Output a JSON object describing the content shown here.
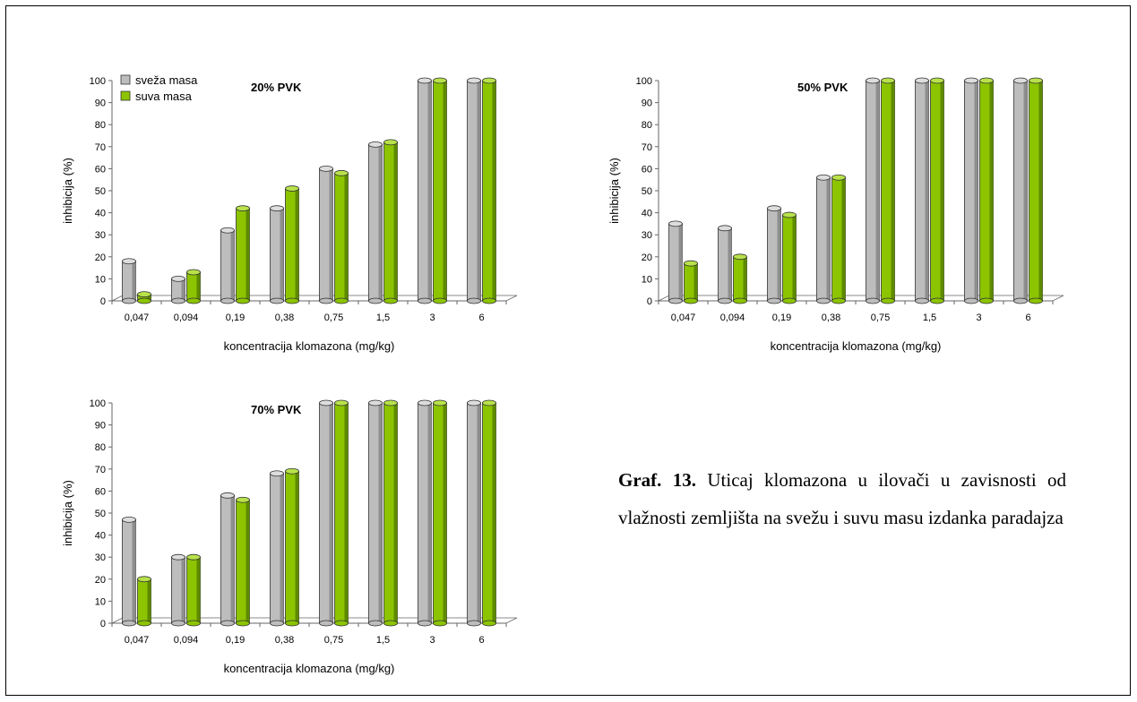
{
  "colors": {
    "fresh_front": "#bdbdbd",
    "fresh_side": "#8e8e8e",
    "fresh_top": "#dddddd",
    "dry_front": "#8cc400",
    "dry_side": "#5e8a00",
    "dry_top": "#b8e24a"
  },
  "caption": {
    "label": "Graf. 13.",
    "text": "Uticaj klomazona u ilovači u zavisnosti od vlažnosti zemljišta na svežu i suvu masu izdanka paradajza"
  },
  "chart_data": [
    {
      "type": "bar",
      "title": "20% PVK",
      "xlabel": "koncentracija klomazona (mg/kg)",
      "ylabel": "inhibicija (%)",
      "ylim": [
        0,
        100
      ],
      "yticks": [
        0,
        10,
        20,
        30,
        40,
        50,
        60,
        70,
        80,
        90,
        100
      ],
      "categories": [
        "0,047",
        "0,094",
        "0,19",
        "0,38",
        "0,75",
        "1,5",
        "3",
        "6"
      ],
      "legend": "top-left",
      "series": [
        {
          "name": "sveža masa",
          "values": [
            18,
            10,
            32,
            42,
            60,
            71,
            100,
            100
          ]
        },
        {
          "name": "suva masa",
          "values": [
            3,
            13,
            42,
            51,
            58,
            72,
            100,
            100
          ]
        }
      ]
    },
    {
      "type": "bar",
      "title": "50% PVK",
      "xlabel": "koncentracija klomazona (mg/kg)",
      "ylabel": "inhibicija (%)",
      "ylim": [
        0,
        100
      ],
      "yticks": [
        0,
        10,
        20,
        30,
        40,
        50,
        60,
        70,
        80,
        90,
        100
      ],
      "categories": [
        "0,047",
        "0,094",
        "0,19",
        "0,38",
        "0,75",
        "1,5",
        "3",
        "6"
      ],
      "series": [
        {
          "values": [
            35,
            33,
            42,
            56,
            100,
            100,
            100,
            100
          ]
        },
        {
          "values": [
            17,
            20,
            39,
            56,
            100,
            100,
            100,
            100
          ]
        }
      ]
    },
    {
      "type": "bar",
      "title": "70% PVK",
      "xlabel": "koncentracija klomazona (mg/kg)",
      "ylabel": "inhibicija (%)",
      "ylim": [
        0,
        100
      ],
      "yticks": [
        0,
        10,
        20,
        30,
        40,
        50,
        60,
        70,
        80,
        90,
        100
      ],
      "categories": [
        "0,047",
        "0,094",
        "0,19",
        "0,38",
        "0,75",
        "1,5",
        "3",
        "6"
      ],
      "series": [
        {
          "values": [
            47,
            30,
            58,
            68,
            100,
            100,
            100,
            100
          ]
        },
        {
          "values": [
            20,
            30,
            56,
            69,
            100,
            100,
            100,
            100
          ]
        }
      ]
    }
  ]
}
